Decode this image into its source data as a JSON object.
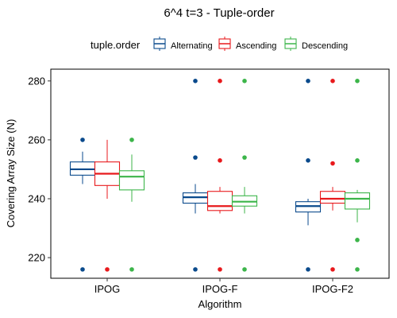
{
  "chart_data": {
    "type": "boxplot",
    "title": "6^4 t=3 - Tuple-order",
    "xlabel": "Algorithm",
    "ylabel": "Covering Array Size (N)",
    "ylim": [
      213,
      284
    ],
    "yticks": [
      220,
      240,
      260,
      280
    ],
    "categories": [
      "IPOG",
      "IPOG-F",
      "IPOG-F2"
    ],
    "legend": {
      "title": "tuple.order",
      "position": "top",
      "entries": [
        "Alternating",
        "Ascending",
        "Descending"
      ]
    },
    "series": [
      {
        "name": "Alternating",
        "color": "#0a4a8c",
        "boxes": [
          {
            "lower": 245,
            "q1": 248,
            "median": 250,
            "q3": 252.5,
            "upper": 256,
            "outliers": [
              260,
              216
            ]
          },
          {
            "lower": 235,
            "q1": 238.5,
            "median": 240.5,
            "q3": 242,
            "upper": 245,
            "outliers": [
              280,
              254,
              216
            ]
          },
          {
            "lower": 231,
            "q1": 235.5,
            "median": 237.5,
            "q3": 239,
            "upper": 240,
            "outliers": [
              280,
              253,
              216
            ]
          }
        ]
      },
      {
        "name": "Ascending",
        "color": "#e8191c",
        "boxes": [
          {
            "lower": 240,
            "q1": 244.5,
            "median": 248.5,
            "q3": 252.5,
            "upper": 260,
            "outliers": [
              216
            ]
          },
          {
            "lower": 235,
            "q1": 236,
            "median": 237.5,
            "q3": 242.5,
            "upper": 244,
            "outliers": [
              280,
              253,
              216
            ]
          },
          {
            "lower": 236,
            "q1": 238.5,
            "median": 240,
            "q3": 242.5,
            "upper": 244,
            "outliers": [
              280,
              252,
              216
            ]
          }
        ]
      },
      {
        "name": "Descending",
        "color": "#3cb54a",
        "boxes": [
          {
            "lower": 239,
            "q1": 243,
            "median": 247.5,
            "q3": 249.5,
            "upper": 255,
            "outliers": [
              260,
              216
            ]
          },
          {
            "lower": 235,
            "q1": 237.5,
            "median": 239,
            "q3": 241,
            "upper": 244,
            "outliers": [
              280,
              254,
              216
            ]
          },
          {
            "lower": 232,
            "q1": 236.5,
            "median": 240,
            "q3": 242,
            "upper": 243,
            "outliers": [
              280,
              253,
              226,
              216
            ]
          }
        ]
      }
    ]
  }
}
